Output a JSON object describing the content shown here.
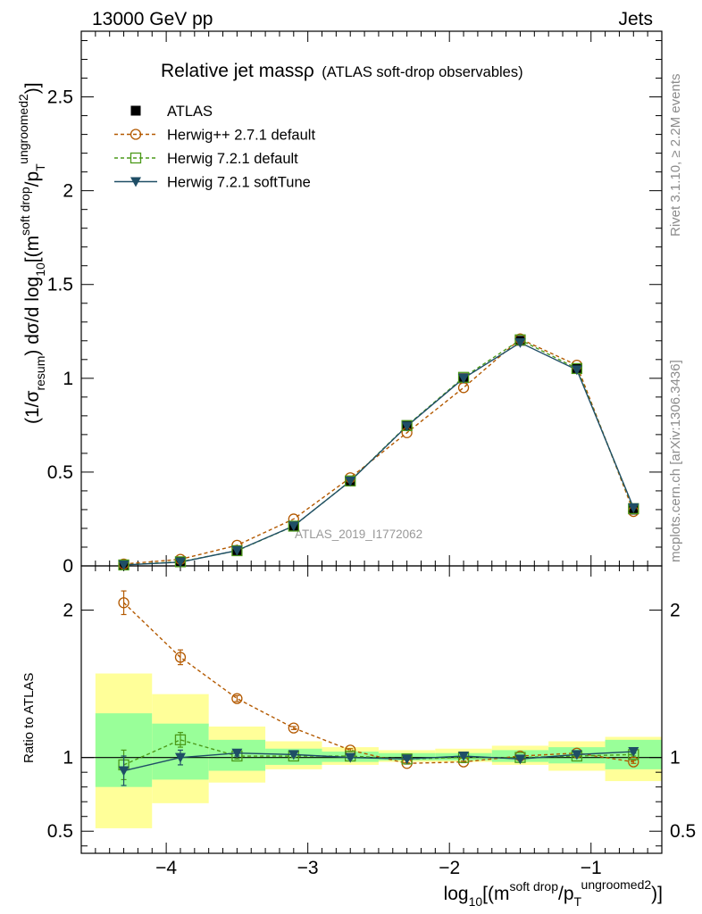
{
  "header": {
    "left": "13000 GeV pp",
    "right": "Jets"
  },
  "side_text": {
    "rivet": "Rivet 3.1.10, ≥ 2.2M events",
    "mcplots": "mcplots.cern.ch [arXiv:1306.3436]"
  },
  "chart_data": [
    {
      "type": "line",
      "title": "Relative jet massρ",
      "subtitle": "(ATLAS soft-drop observables)",
      "ylabel_parts": {
        "open": "(1/σ",
        "sub1": "resum",
        "mid": ") dσ/d log",
        "sub2": "10",
        "m_open": "[(m",
        "sup1": "soft drop",
        "slash_p": "/p",
        "sub3": "T",
        "sup2": "ungroomed",
        "close_sup": "2",
        "close": ")]"
      },
      "xlim": [
        -4.6,
        -0.5
      ],
      "ylim": [
        0,
        2.85
      ],
      "x_ticks": [
        -4,
        -3,
        -2,
        -1
      ],
      "x_tick_labels": [
        "−4",
        "−3",
        "−2",
        "−1"
      ],
      "y_ticks": [
        0,
        0.5,
        1,
        1.5,
        2,
        2.5
      ],
      "y_tick_labels": [
        "0",
        "0.5",
        "1",
        "1.5",
        "2",
        "2.5"
      ],
      "watermark": "ATLAS_2019_I1772062",
      "legend_placement": "top-left",
      "series": [
        {
          "name": "ATLAS",
          "color": "#000000",
          "marker": "filled-square",
          "x": [
            -4.3,
            -3.9,
            -3.5,
            -3.1,
            -2.7,
            -2.3,
            -1.9,
            -1.5,
            -1.1,
            -0.7
          ],
          "values": [
            0.005,
            0.02,
            0.08,
            0.21,
            0.45,
            0.75,
            1.0,
            1.2,
            1.05,
            0.3
          ]
        },
        {
          "name": "Herwig++ 2.7.1 default",
          "color": "#b35900",
          "marker": "open-circle",
          "x": [
            -4.3,
            -3.9,
            -3.5,
            -3.1,
            -2.7,
            -2.3,
            -1.9,
            -1.5,
            -1.1,
            -0.7
          ],
          "values": [
            0.01,
            0.035,
            0.11,
            0.25,
            0.47,
            0.71,
            0.95,
            1.21,
            1.07,
            0.29
          ]
        },
        {
          "name": "Herwig 7.2.1 default",
          "color": "#4c9a1a",
          "marker": "open-square",
          "x": [
            -4.3,
            -3.9,
            -3.5,
            -3.1,
            -2.7,
            -2.3,
            -1.9,
            -1.5,
            -1.1,
            -0.7
          ],
          "values": [
            0.005,
            0.022,
            0.081,
            0.212,
            0.453,
            0.748,
            1.005,
            1.205,
            1.052,
            0.305
          ]
        },
        {
          "name": "Herwig 7.2.1 softTune",
          "color": "#1f4e66",
          "marker": "filled-triangle-down",
          "x": [
            -4.3,
            -3.9,
            -3.5,
            -3.1,
            -2.7,
            -2.3,
            -1.9,
            -1.5,
            -1.1,
            -0.7
          ],
          "values": [
            0.005,
            0.02,
            0.082,
            0.213,
            0.452,
            0.745,
            1.0,
            1.19,
            1.045,
            0.31
          ]
        }
      ]
    },
    {
      "type": "line",
      "ylabel": "Ratio to ATLAS",
      "xlabel_parts": {
        "log": "log",
        "sub": "10",
        "m_open": "[(m",
        "sup1": "soft drop",
        "slash_p": "/p",
        "sub_t": "T",
        "sup2": "ungroomed",
        "sq": "2",
        "close": ")]"
      },
      "xlim": [
        -4.6,
        -0.5
      ],
      "ylim": [
        0.35,
        2.3
      ],
      "y_ticks": [
        0.5,
        1,
        2
      ],
      "y_tick_labels": [
        "0.5",
        "1",
        "2"
      ],
      "band_edges": [
        -4.5,
        -4.1,
        -3.7,
        -3.3,
        -2.9,
        -2.5,
        -2.1,
        -1.7,
        -1.3,
        -0.9,
        -0.5
      ],
      "outer_band": [
        [
          0.52,
          1.57
        ],
        [
          0.69,
          1.43
        ],
        [
          0.83,
          1.21
        ],
        [
          0.92,
          1.11
        ],
        [
          0.95,
          1.07
        ],
        [
          0.97,
          1.05
        ],
        [
          0.97,
          1.06
        ],
        [
          0.95,
          1.08
        ],
        [
          0.91,
          1.11
        ],
        [
          0.84,
          1.14
        ]
      ],
      "inner_band": [
        [
          0.8,
          1.3
        ],
        [
          0.85,
          1.23
        ],
        [
          0.91,
          1.12
        ],
        [
          0.95,
          1.06
        ],
        [
          0.97,
          1.04
        ],
        [
          0.98,
          1.03
        ],
        [
          0.98,
          1.03
        ],
        [
          0.97,
          1.05
        ],
        [
          0.96,
          1.07
        ],
        [
          0.92,
          1.12
        ]
      ],
      "series": [
        {
          "name": "Herwig++ 2.7.1 default",
          "x": [
            -4.3,
            -3.9,
            -3.5,
            -3.1,
            -2.7,
            -2.3,
            -1.9,
            -1.5,
            -1.1,
            -0.7
          ],
          "values": [
            2.05,
            1.68,
            1.4,
            1.2,
            1.05,
            0.96,
            0.97,
            1.01,
            1.03,
            0.97
          ],
          "errors": [
            0.08,
            0.05,
            0.02,
            0.01,
            0.01,
            0.005,
            0.005,
            0.005,
            0.005,
            0.01
          ]
        },
        {
          "name": "Herwig 7.2.1 default",
          "x": [
            -4.3,
            -3.9,
            -3.5,
            -3.1,
            -2.7,
            -2.3,
            -1.9,
            -1.5,
            -1.1,
            -0.7
          ],
          "values": [
            0.95,
            1.12,
            1.01,
            1.01,
            1.01,
            0.99,
            1.0,
            1.0,
            1.01,
            1.02
          ],
          "errors": [
            0.1,
            0.05,
            0.02,
            0.01,
            0.01,
            0.005,
            0.005,
            0.005,
            0.005,
            0.01
          ]
        },
        {
          "name": "Herwig 7.2.1 softTune",
          "x": [
            -4.3,
            -3.9,
            -3.5,
            -3.1,
            -2.7,
            -2.3,
            -1.9,
            -1.5,
            -1.1,
            -0.7
          ],
          "values": [
            0.91,
            1.0,
            1.03,
            1.02,
            1.0,
            0.99,
            1.01,
            0.99,
            1.02,
            1.04
          ],
          "errors": [
            0.1,
            0.05,
            0.02,
            0.01,
            0.01,
            0.005,
            0.005,
            0.005,
            0.005,
            0.01
          ]
        }
      ],
      "colors": {
        "outer_band": "#ffff99",
        "inner_band": "#99ff99"
      }
    }
  ]
}
